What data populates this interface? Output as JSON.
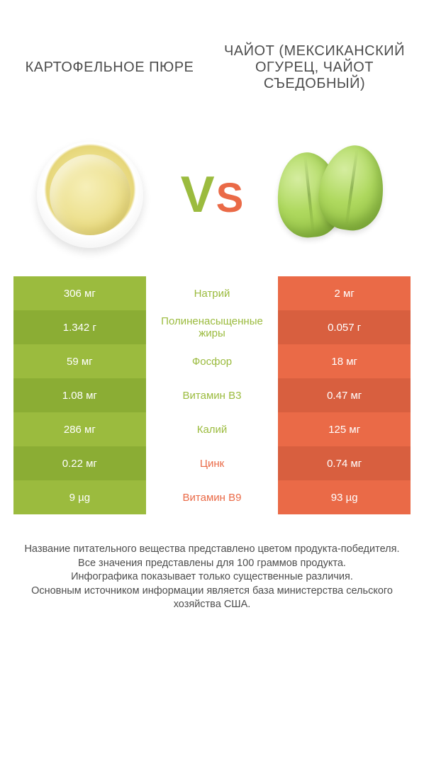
{
  "colors": {
    "green": "#9bbb3e",
    "orange": "#ea6a47",
    "green_alt": "#8bad34",
    "orange_alt": "#d85f3f",
    "text": "#4d4d4d",
    "white": "#ffffff"
  },
  "header": {
    "left_title": "КАРТОФЕЛЬНОЕ ПЮРЕ",
    "right_title": "ЧАЙОТ (МЕКСИКАНСКИЙ ОГУРЕЦ, ЧАЙОТ СЪЕДОБНЫЙ)"
  },
  "vs": {
    "v": "V",
    "s": "S"
  },
  "rows": [
    {
      "left": "306 мг",
      "mid": "Натрий",
      "right": "2 мг",
      "winner": "left"
    },
    {
      "left": "1.342 г",
      "mid": "Полиненасыщенные жиры",
      "right": "0.057 г",
      "winner": "left"
    },
    {
      "left": "59 мг",
      "mid": "Фосфор",
      "right": "18 мг",
      "winner": "left"
    },
    {
      "left": "1.08 мг",
      "mid": "Витамин B3",
      "right": "0.47 мг",
      "winner": "left"
    },
    {
      "left": "286 мг",
      "mid": "Калий",
      "right": "125 мг",
      "winner": "left"
    },
    {
      "left": "0.22 мг",
      "mid": "Цинк",
      "right": "0.74 мг",
      "winner": "right"
    },
    {
      "left": "9 µg",
      "mid": "Витамин B9",
      "right": "93 µg",
      "winner": "right"
    }
  ],
  "footer_lines": [
    "Название питательного вещества представлено цветом продукта-победителя.",
    "Все значения представлены для 100 граммов продукта.",
    "Инфографика показывает только существенные различия.",
    "Основным источником информации является база министерства сельского хозяйства США."
  ]
}
